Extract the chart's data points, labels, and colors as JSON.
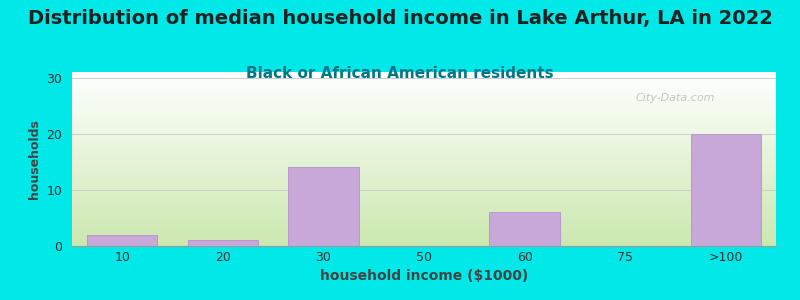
{
  "title": "Distribution of median household income in Lake Arthur, LA in 2022",
  "subtitle": "Black or African American residents",
  "xlabel": "household income ($1000)",
  "ylabel": "households",
  "categories": [
    "10",
    "20",
    "30",
    "50",
    "60",
    "75",
    ">100"
  ],
  "values": [
    2,
    1,
    14,
    0,
    6,
    0,
    20
  ],
  "bar_color": "#c8a8d8",
  "bar_edgecolor": "#b898c8",
  "background_top_right": "#ffffff",
  "background_bottom_left": "#cce8b0",
  "outer_background": "#00e8e8",
  "title_fontsize": 14,
  "title_color": "#222222",
  "subtitle_fontsize": 11,
  "subtitle_color": "#007788",
  "xlabel_fontsize": 10,
  "ylabel_fontsize": 9,
  "tick_fontsize": 9,
  "yticks": [
    0,
    10,
    20,
    30
  ],
  "ylim": [
    0,
    31
  ],
  "watermark": "City-Data.com",
  "watermark_color": "#bbbbbb",
  "grid_color": "#cccccc"
}
